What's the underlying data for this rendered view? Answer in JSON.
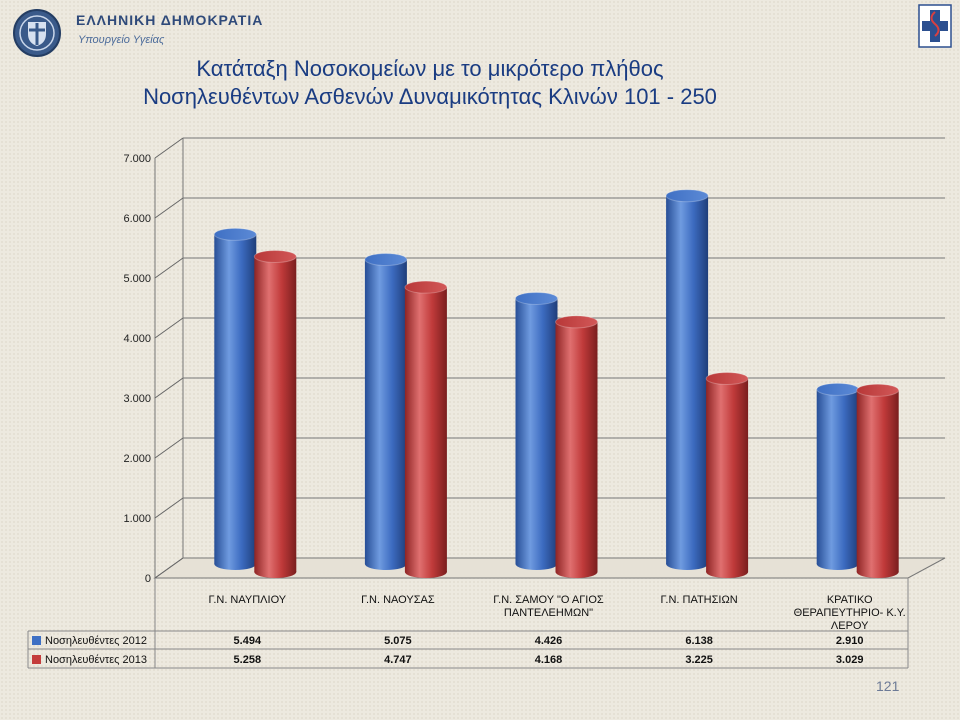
{
  "header": {
    "org": "ΕΛΛΗΝΙΚΗ ΔΗΜΟΚΡΑΤΙΑ",
    "ministry": "Υπουργείο Υγείας",
    "page_number": "121"
  },
  "colors": {
    "series_2012": "#3d6fc4",
    "series_2013": "#c43c3c",
    "title": "#1a3c82"
  },
  "chart_data": {
    "type": "bar",
    "title_line1": "Κατάταξη Νοσοκομείων με το μικρότερο πλήθος",
    "title_line2": "Νοσηλευθέντων Ασθενών Δυναμικότητας Κλινών 101 - 250",
    "categories": [
      [
        "Γ.Ν. ΝΑΥΠΛΙΟΥ"
      ],
      [
        "Γ.Ν. ΝΑΟΥΣΑΣ"
      ],
      [
        "Γ.Ν. ΣΑΜΟΥ \"Ο ΑΓΙΟΣ",
        "ΠΑΝΤΕΛΕΗΜΩΝ\""
      ],
      [
        "Γ.Ν. ΠΑΤΗΣΙΩΝ"
      ],
      [
        "ΚΡΑΤΙΚΟ",
        "ΘΕΡΑΠΕΥΤΗΡΙΟ- Κ.Υ.",
        "ΛΕΡΟΥ"
      ]
    ],
    "series": [
      {
        "name": "Νοσηλευθέντες 2012",
        "values": [
          5494,
          5075,
          4426,
          6138,
          2910
        ],
        "labels": [
          "5.494",
          "5.075",
          "4.426",
          "6.138",
          "2.910"
        ]
      },
      {
        "name": "Νοσηλευθέντες 2013",
        "values": [
          5258,
          4747,
          4168,
          3225,
          3029
        ],
        "labels": [
          "5.258",
          "4.747",
          "4.168",
          "3.225",
          "3.029"
        ]
      }
    ],
    "ylim": [
      0,
      7000
    ],
    "yticks": [
      {
        "value": 0,
        "label": "0"
      },
      {
        "value": 1000,
        "label": "1.000"
      },
      {
        "value": 2000,
        "label": "2.000"
      },
      {
        "value": 3000,
        "label": "3.000"
      },
      {
        "value": 4000,
        "label": "4.000"
      },
      {
        "value": 5000,
        "label": "5.000"
      },
      {
        "value": 6000,
        "label": "6.000"
      },
      {
        "value": 7000,
        "label": "7.000"
      }
    ],
    "grid": true,
    "legend": "data-table"
  }
}
